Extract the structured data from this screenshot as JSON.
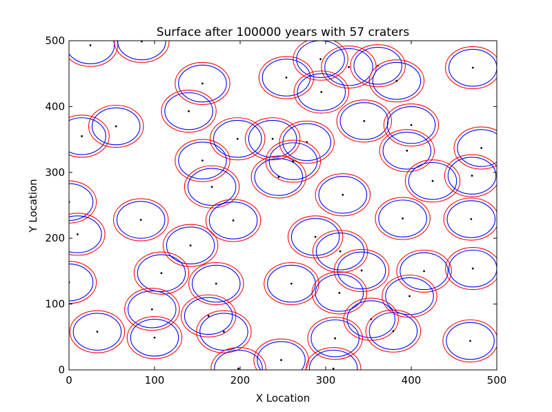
{
  "chart_data": {
    "type": "scatter",
    "title": "Surface after 100000 years with 57 craters",
    "xlabel": "X Location",
    "ylabel": "Y Location",
    "xlim": [
      0,
      500
    ],
    "ylim": [
      0,
      500
    ],
    "x_ticks": [
      "0",
      "100",
      "200",
      "300",
      "400",
      "500"
    ],
    "y_ticks": [
      "0",
      "100",
      "200",
      "300",
      "400",
      "500"
    ],
    "grid": false,
    "crater_radius": 28,
    "rim_radius": 32,
    "colors": {
      "crater": "#0000ff",
      "rim": "#ff0000",
      "center": "#000000"
    },
    "craters": [
      {
        "x": 25,
        "y": 493
      },
      {
        "x": 85,
        "y": 499
      },
      {
        "x": 156,
        "y": 435
      },
      {
        "x": 140,
        "y": 393
      },
      {
        "x": 15,
        "y": 355
      },
      {
        "x": 55,
        "y": 370
      },
      {
        "x": 254,
        "y": 444
      },
      {
        "x": 294,
        "y": 472
      },
      {
        "x": 327,
        "y": 460
      },
      {
        "x": 361,
        "y": 462
      },
      {
        "x": 383,
        "y": 439
      },
      {
        "x": 472,
        "y": 459
      },
      {
        "x": 295,
        "y": 422
      },
      {
        "x": 345,
        "y": 378
      },
      {
        "x": 400,
        "y": 372
      },
      {
        "x": 197,
        "y": 351
      },
      {
        "x": 238,
        "y": 351
      },
      {
        "x": 278,
        "y": 346
      },
      {
        "x": 262,
        "y": 317
      },
      {
        "x": 156,
        "y": 318
      },
      {
        "x": 395,
        "y": 333
      },
      {
        "x": 482,
        "y": 337
      },
      {
        "x": 245,
        "y": 293
      },
      {
        "x": 167,
        "y": 278
      },
      {
        "x": 425,
        "y": 287
      },
      {
        "x": 471,
        "y": 295
      },
      {
        "x": 0,
        "y": 255
      },
      {
        "x": 320,
        "y": 266
      },
      {
        "x": 84,
        "y": 228
      },
      {
        "x": 192,
        "y": 227
      },
      {
        "x": 390,
        "y": 230
      },
      {
        "x": 470,
        "y": 229
      },
      {
        "x": 10,
        "y": 206
      },
      {
        "x": 288,
        "y": 202
      },
      {
        "x": 142,
        "y": 189
      },
      {
        "x": 317,
        "y": 180
      },
      {
        "x": 342,
        "y": 151
      },
      {
        "x": 415,
        "y": 150
      },
      {
        "x": 472,
        "y": 154
      },
      {
        "x": 108,
        "y": 147
      },
      {
        "x": 0,
        "y": 133
      },
      {
        "x": 172,
        "y": 131
      },
      {
        "x": 260,
        "y": 131
      },
      {
        "x": 316,
        "y": 117
      },
      {
        "x": 398,
        "y": 112
      },
      {
        "x": 97,
        "y": 92
      },
      {
        "x": 163,
        "y": 82
      },
      {
        "x": 353,
        "y": 77
      },
      {
        "x": 33,
        "y": 58
      },
      {
        "x": 181,
        "y": 58
      },
      {
        "x": 379,
        "y": 59
      },
      {
        "x": 100,
        "y": 49
      },
      {
        "x": 311,
        "y": 48
      },
      {
        "x": 469,
        "y": 44
      },
      {
        "x": 248,
        "y": 15
      },
      {
        "x": 198,
        "y": 2
      },
      {
        "x": 309,
        "y": 2
      }
    ]
  }
}
